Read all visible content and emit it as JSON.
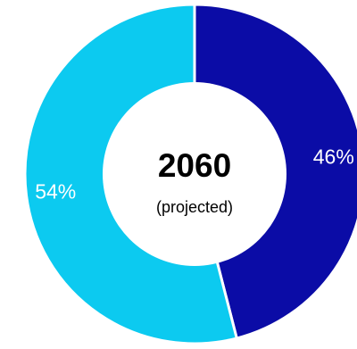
{
  "chart_data": {
    "type": "pie",
    "donut": true,
    "center_title": "2060",
    "center_subtitle": "(projected)",
    "start_angle_deg": 0,
    "direction": "clockwise",
    "slices": [
      {
        "label": "46%",
        "value": 46,
        "color": "#0b0ca6",
        "label_color": "#ffffff"
      },
      {
        "label": "54%",
        "value": 54,
        "color": "#0ccaf0",
        "label_color": "#ffffff"
      }
    ],
    "separator_color": "#ffffff"
  }
}
